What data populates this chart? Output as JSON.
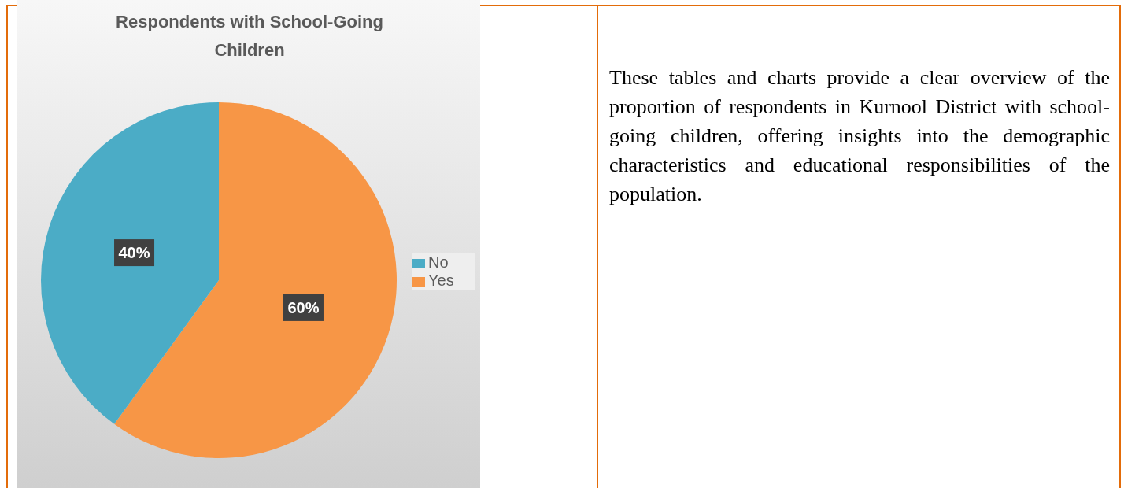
{
  "chart_data": {
    "type": "pie",
    "title": "Respondents with School-Going Children",
    "categories": [
      "Yes",
      "No"
    ],
    "values": [
      60,
      40
    ],
    "colors": [
      "#f79646",
      "#4bacc6"
    ],
    "value_labels": [
      "60%",
      "40%"
    ],
    "legend": "right",
    "annotations": [
      "These tables and charts provide a clear overview of the proportion of respondents in Kurnool District with school-going children, offering insights into the demographic characteristics and educational responsibilities of the population."
    ]
  }
}
